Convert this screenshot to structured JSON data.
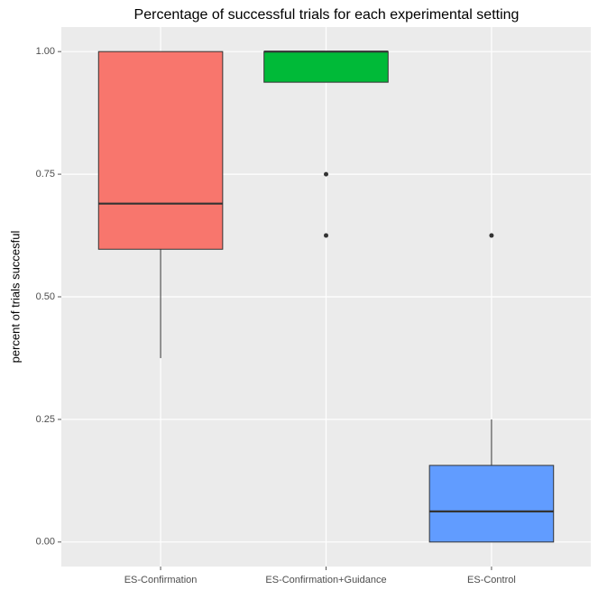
{
  "chart_data": {
    "type": "box",
    "title": "Percentage of successful trials for each experimental setting",
    "ylabel": "percent of trials succesful",
    "categories": [
      "ES-Confirmation",
      "ES-Confirmation+Guidance",
      "ES-Control"
    ],
    "boxes": [
      {
        "min": 0.375,
        "q1": 0.597,
        "median": 0.69,
        "q3": 1,
        "max": 1,
        "outliers": [],
        "color": "#F8766D"
      },
      {
        "min": 0.9375,
        "q1": 0.9375,
        "median": 1,
        "q3": 1,
        "max": 1,
        "outliers": [
          0.75,
          0.625
        ],
        "color": "#00BA38"
      },
      {
        "min": 0,
        "q1": 0,
        "median": 0.0625,
        "q3": 0.15625,
        "max": 0.25,
        "outliers": [
          0.625
        ],
        "color": "#619CFF"
      }
    ],
    "ylim": [
      -0.05,
      1.05
    ],
    "yticks": [
      {
        "value": 0,
        "label": "0.00"
      },
      0.25,
      {
        "value": 0.5,
        "label": "0.50"
      },
      0.75,
      {
        "value": 1,
        "label": "1.00"
      }
    ],
    "grid": true
  }
}
